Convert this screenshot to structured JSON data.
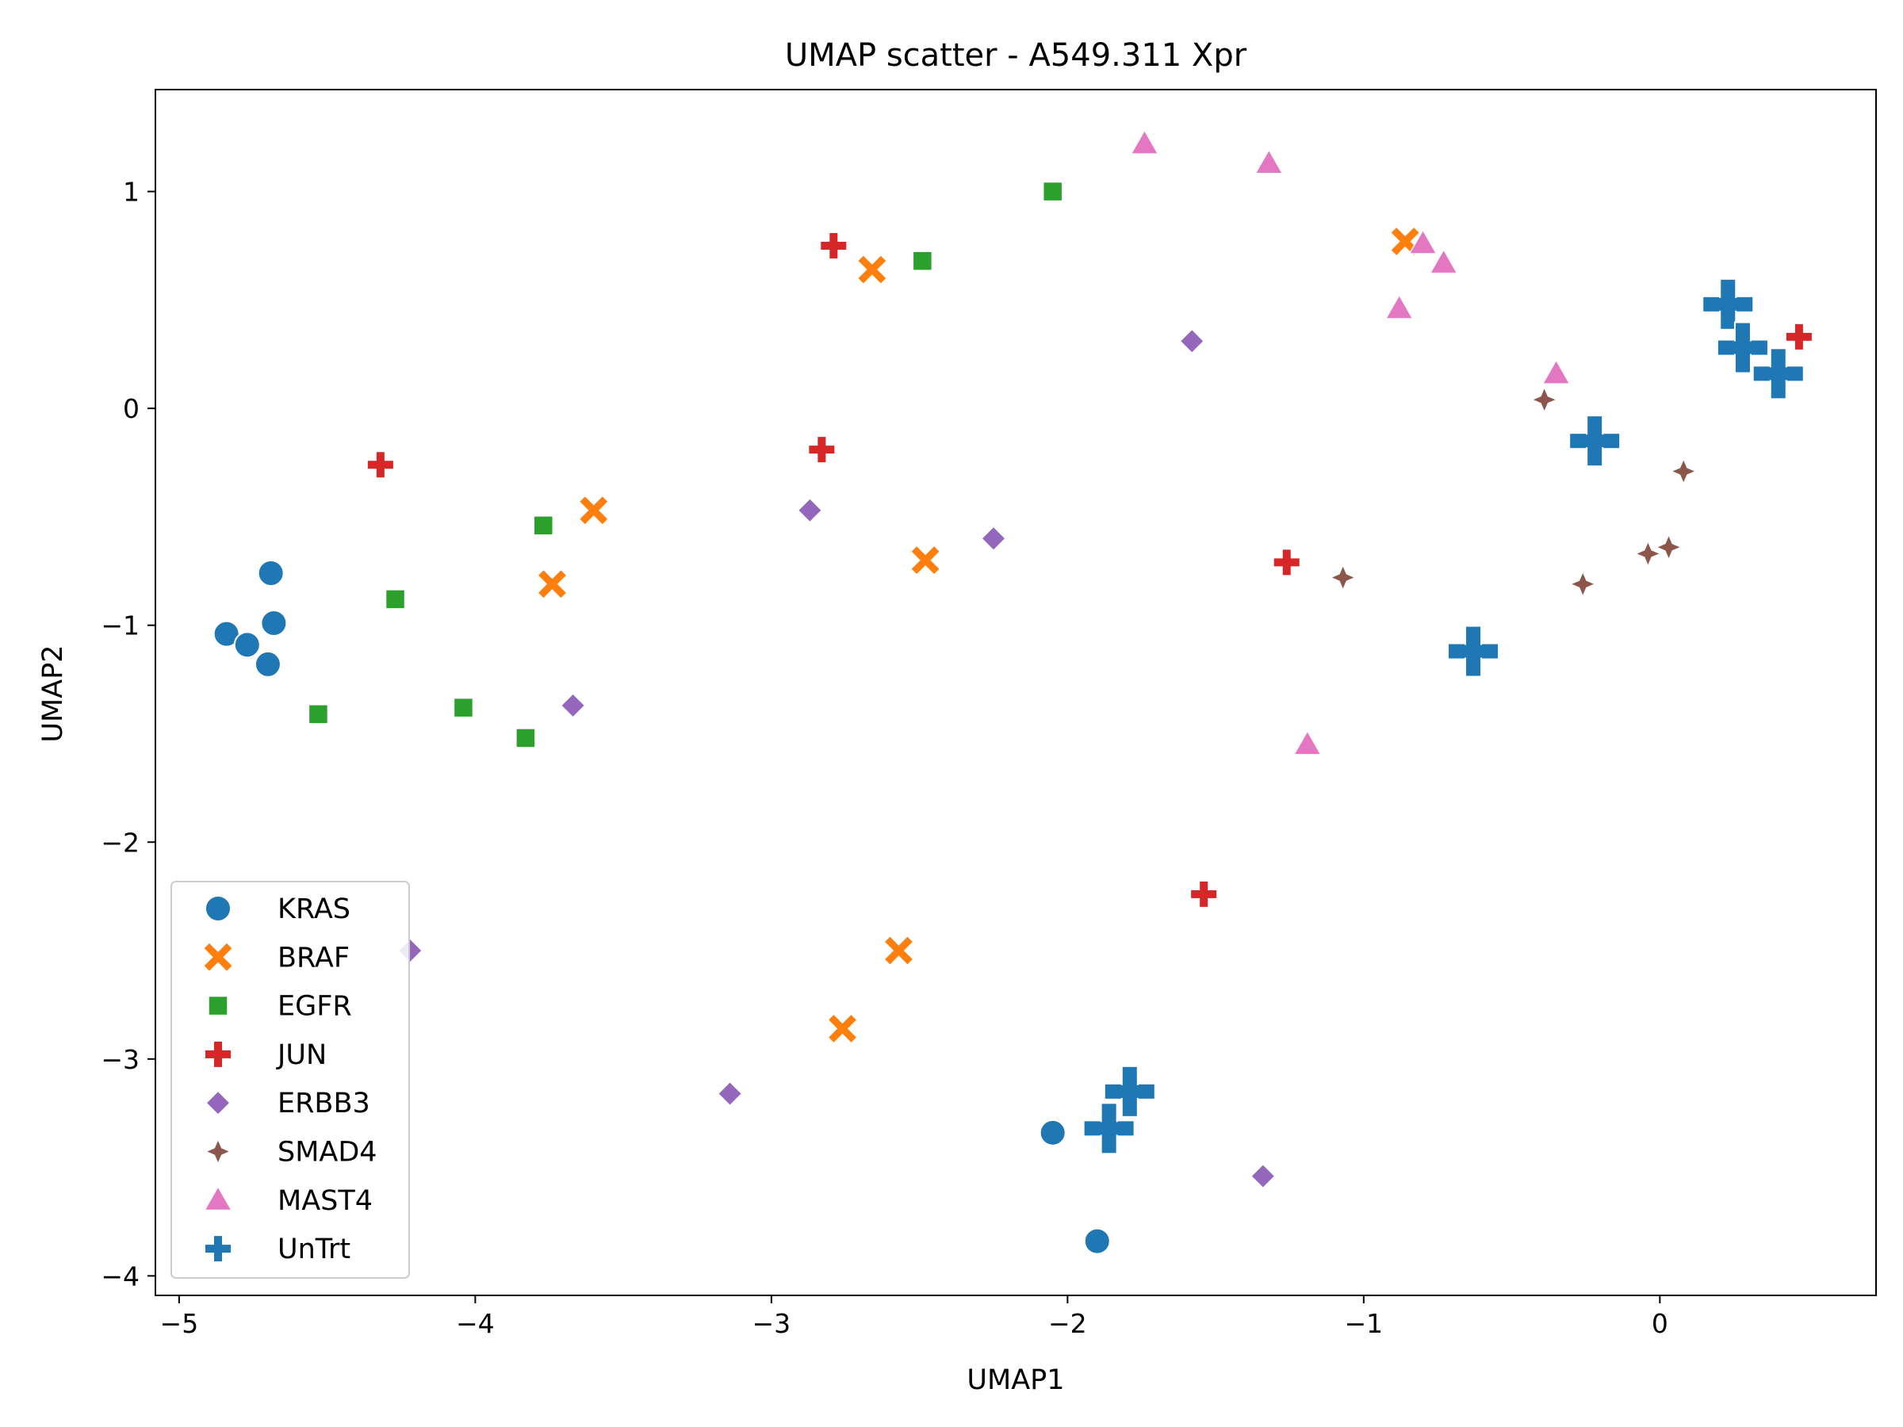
{
  "chart_data": {
    "type": "scatter",
    "title": "UMAP scatter - A549.311 Xpr",
    "xlabel": "UMAP1",
    "ylabel": "UMAP2",
    "xlim": [
      -5.08,
      0.73
    ],
    "ylim": [
      -4.09,
      1.47
    ],
    "x_ticks": [
      -5,
      -4,
      -3,
      -2,
      -1,
      0
    ],
    "y_ticks": [
      -4,
      -3,
      -2,
      -1,
      0,
      1
    ],
    "x_tick_labels": [
      "−5",
      "−4",
      "−3",
      "−2",
      "−1",
      "0"
    ],
    "y_tick_labels": [
      "−4",
      "−3",
      "−2",
      "−1",
      "0",
      "1"
    ],
    "grid": false,
    "legend_position": "lower-left",
    "series": [
      {
        "name": "KRAS",
        "marker": "circle",
        "color": "#1f77b4",
        "points": [
          [
            -4.69,
            -0.76
          ],
          [
            -4.84,
            -1.04
          ],
          [
            -4.77,
            -1.09
          ],
          [
            -4.68,
            -0.99
          ],
          [
            -4.7,
            -1.18
          ],
          [
            -2.05,
            -3.34
          ],
          [
            -1.9,
            -3.84
          ]
        ]
      },
      {
        "name": "BRAF",
        "marker": "x",
        "color": "#ff7f0e",
        "points": [
          [
            -3.6,
            -0.47
          ],
          [
            -3.74,
            -0.81
          ],
          [
            -2.66,
            0.64
          ],
          [
            -2.48,
            -0.7
          ],
          [
            -0.86,
            0.77
          ],
          [
            -2.57,
            -2.5
          ],
          [
            -2.76,
            -2.86
          ]
        ]
      },
      {
        "name": "EGFR",
        "marker": "square",
        "color": "#2ca02c",
        "points": [
          [
            -4.27,
            -0.88
          ],
          [
            -3.77,
            -0.54
          ],
          [
            -4.53,
            -1.41
          ],
          [
            -4.04,
            -1.38
          ],
          [
            -3.83,
            -1.52
          ],
          [
            -2.49,
            0.68
          ],
          [
            -2.05,
            1.0
          ]
        ]
      },
      {
        "name": "JUN",
        "marker": "plus",
        "color": "#d62728",
        "points": [
          [
            -4.32,
            -0.26
          ],
          [
            -2.79,
            0.75
          ],
          [
            -2.83,
            -0.19
          ],
          [
            -1.26,
            -0.71
          ],
          [
            0.47,
            0.33
          ],
          [
            -1.54,
            -2.24
          ]
        ]
      },
      {
        "name": "ERBB3",
        "marker": "diamond",
        "color": "#9467bd",
        "points": [
          [
            -2.87,
            -0.47
          ],
          [
            -2.25,
            -0.6
          ],
          [
            -1.58,
            0.31
          ],
          [
            -3.67,
            -1.37
          ],
          [
            -4.22,
            -2.5
          ],
          [
            -3.14,
            -3.16
          ],
          [
            -1.34,
            -3.54
          ]
        ]
      },
      {
        "name": "SMAD4",
        "marker": "star4",
        "color": "#8c564b",
        "points": [
          [
            -0.39,
            0.04
          ],
          [
            0.08,
            -0.29
          ],
          [
            -1.07,
            -0.78
          ],
          [
            -0.26,
            -0.81
          ],
          [
            -0.04,
            -0.67
          ],
          [
            0.03,
            -0.64
          ]
        ]
      },
      {
        "name": "MAST4",
        "marker": "triangle",
        "color": "#e377c2",
        "points": [
          [
            -1.74,
            1.22
          ],
          [
            -1.32,
            1.13
          ],
          [
            -0.8,
            0.76
          ],
          [
            -0.73,
            0.67
          ],
          [
            -0.88,
            0.46
          ],
          [
            -0.35,
            0.16
          ],
          [
            -1.19,
            -1.55
          ]
        ]
      },
      {
        "name": "UnTrt",
        "marker": "bigplus",
        "color": "#1f77b4",
        "points": [
          [
            0.23,
            0.48
          ],
          [
            0.28,
            0.28
          ],
          [
            0.4,
            0.16
          ],
          [
            -0.22,
            -0.15
          ],
          [
            -0.63,
            -1.12
          ],
          [
            -1.79,
            -3.15
          ],
          [
            -1.86,
            -3.32
          ]
        ]
      }
    ]
  }
}
